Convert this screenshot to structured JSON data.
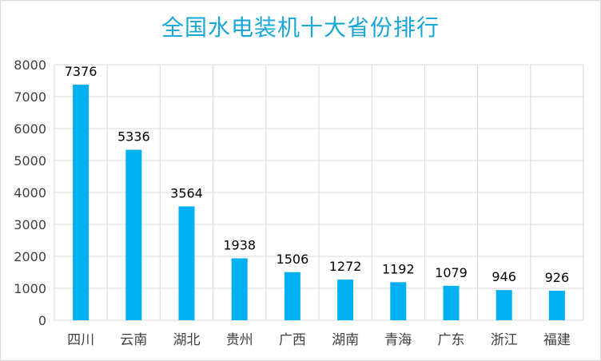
{
  "chart_data": {
    "type": "bar",
    "title": "全国水电装机十大省份排行",
    "xlabel": "",
    "ylabel": "",
    "categories": [
      "四川",
      "云南",
      "湖北",
      "贵州",
      "广西",
      "湖南",
      "青海",
      "广东",
      "浙江",
      "福建"
    ],
    "values": [
      7376,
      5336,
      3564,
      1938,
      1506,
      1272,
      1192,
      1079,
      946,
      926
    ],
    "ylim": [
      0,
      8000
    ],
    "yticks": [
      "0",
      "1000",
      "2000",
      "3000",
      "4000",
      "5000",
      "6000",
      "7000",
      "8000"
    ],
    "grid": true,
    "legend": "none",
    "bar_color": "#00b0f0",
    "grid_color": "#d9d9d9"
  }
}
